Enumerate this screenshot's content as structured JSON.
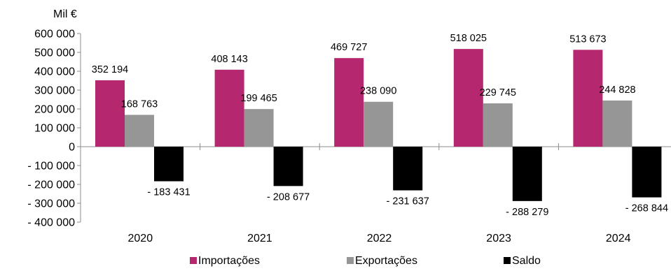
{
  "chart_data": {
    "type": "bar",
    "unit_label": "Mil €",
    "categories": [
      "2020",
      "2021",
      "2022",
      "2023",
      "2024"
    ],
    "series": [
      {
        "name": "Importações",
        "color": "#b5276e",
        "values": [
          352194,
          408143,
          469727,
          518025,
          513673
        ],
        "labels": [
          "352 194",
          "408 143",
          "469 727",
          "518 025",
          "513 673"
        ]
      },
      {
        "name": "Exportações",
        "color": "#969696",
        "values": [
          168763,
          199465,
          238090,
          229745,
          244828
        ],
        "labels": [
          "168 763",
          "199 465",
          "238 090",
          "229 745",
          "244 828"
        ]
      },
      {
        "name": "Saldo",
        "color": "#000000",
        "values": [
          -183431,
          -208677,
          -231637,
          -288279,
          -268844
        ],
        "labels": [
          "- 183 431",
          "- 208 677",
          "- 231 637",
          "- 288 279",
          "- 268 844"
        ]
      }
    ],
    "ylim": [
      -400000,
      600000
    ],
    "yticks": [
      600000,
      500000,
      400000,
      300000,
      200000,
      100000,
      0,
      -100000,
      -200000,
      -300000,
      -400000
    ],
    "ytick_labels": [
      "600 000",
      "500 000",
      "400 000",
      "300 000",
      "200 000",
      "100 000",
      "0",
      "- 100 000",
      "- 200 000",
      "- 300 000",
      "- 400 000"
    ],
    "grid": false,
    "legend_position": "bottom"
  }
}
